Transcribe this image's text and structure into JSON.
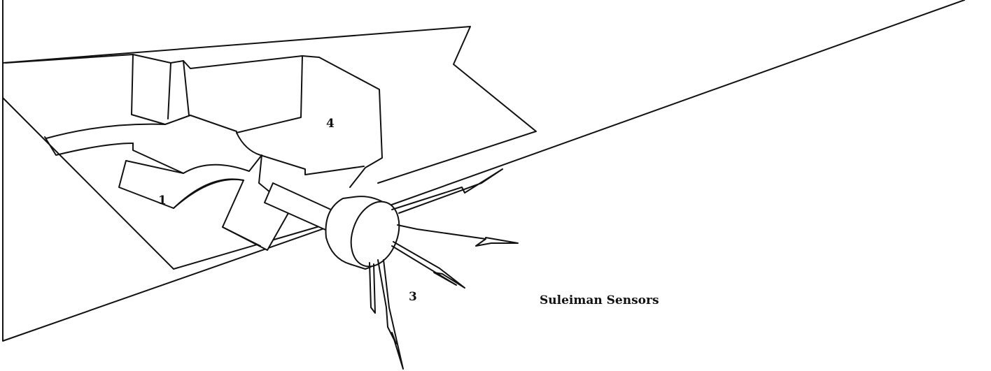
{
  "labels": {
    "part_1": "1",
    "part_3": "3",
    "part_4": "4",
    "caption": "Suleiman Sensors"
  },
  "colors": {
    "line": "#111111",
    "background": "#ffffff"
  }
}
